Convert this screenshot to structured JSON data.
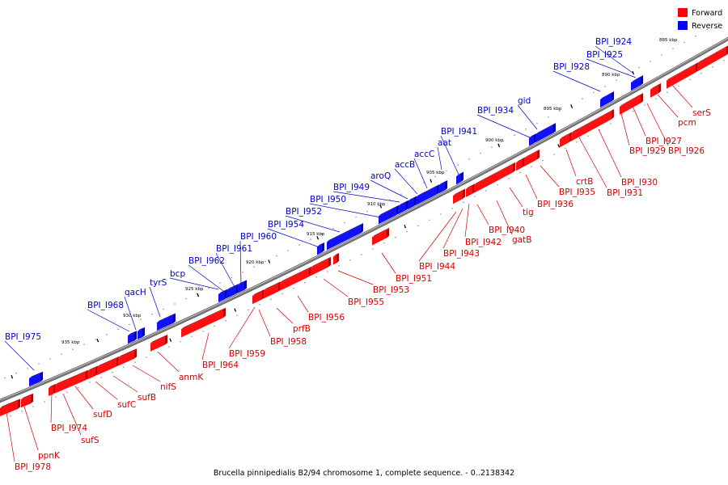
{
  "caption": "Brucella pinnipedialis B2/94 chromosome 1, complete sequence. - 0..2138342",
  "legend": {
    "forward": {
      "label": "Forward",
      "color": "#ff0000"
    },
    "reverse": {
      "label": "Reverse",
      "color": "#0000ff"
    }
  },
  "scale_labels": [
    "885 kbp",
    "890 kbp",
    "895 kbp",
    "900 kbp",
    "905 kbp",
    "910 kbp",
    "915 kbp",
    "920 kbp",
    "925 kbp",
    "930 kbp",
    "935 kbp"
  ],
  "forward_labels": [
    "serS",
    "pcm",
    "BPI_I926",
    "BPI_I927",
    "BPI_I929",
    "BPI_I930",
    "BPI_I931",
    "crtB",
    "BPI_I935",
    "BPI_I936",
    "tig",
    "gatB",
    "BPI_I940",
    "BPI_I942",
    "BPI_I943",
    "BPI_I944",
    "BPI_I951",
    "BPI_I953",
    "BPI_I955",
    "BPI_I956",
    "prfB",
    "BPI_I958",
    "BPI_I959",
    "BPI_I964",
    "anmK",
    "nifS",
    "sufB",
    "sufC",
    "sufD",
    "sufS",
    "BPI_I974",
    "ppnK",
    "BPI_I978"
  ],
  "reverse_labels": [
    "BPI_I924",
    "BPI_I925",
    "BPI_I928",
    "gid",
    "BPI_I934",
    "BPI_I941",
    "aat",
    "accC",
    "accB",
    "aroQ",
    "BPI_I949",
    "BPI_I950",
    "BPI_I952",
    "BPI_I954",
    "BPI_I960",
    "BPI_I961",
    "BPI_I962",
    "bcp",
    "tyrS",
    "qacH",
    "BPI_I968",
    "BPI_I975"
  ]
}
